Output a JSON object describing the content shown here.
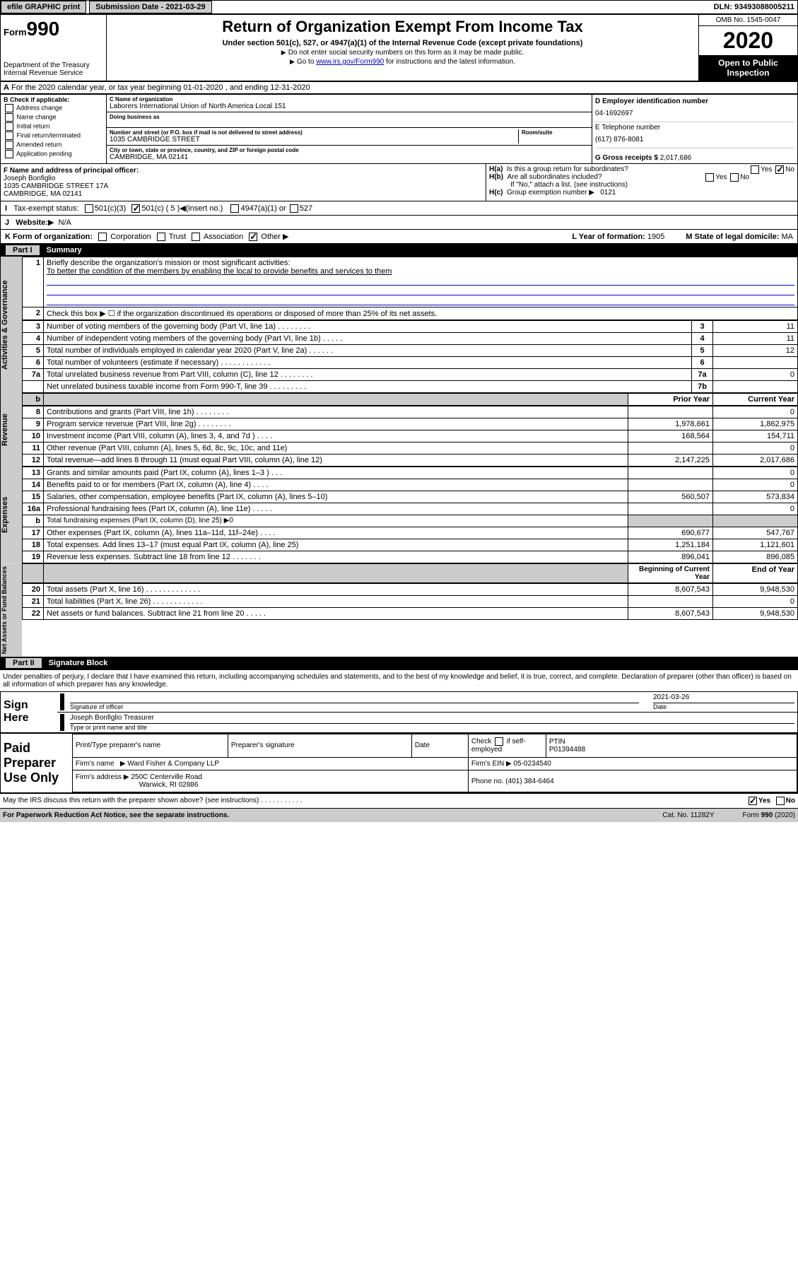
{
  "top": {
    "efile": "efile GRAPHIC print",
    "subdate_label": "Submission Date - 2021-03-29",
    "dln": "DLN: 93493088005211"
  },
  "header": {
    "form_small": "Form",
    "form_num": "990",
    "dept1": "Department of the Treasury",
    "dept2": "Internal Revenue Service",
    "title": "Return of Organization Exempt From Income Tax",
    "subtitle": "Under section 501(c), 527, or 4947(a)(1) of the Internal Revenue Code (except private foundations)",
    "note1": "Do not enter social security numbers on this form as it may be made public.",
    "note2_a": "Go to ",
    "note2_link": "www.irs.gov/Form990",
    "note2_b": " for instructions and the latest information.",
    "omb": "OMB No. 1545-0047",
    "year": "2020",
    "inspection": "Open to Public Inspection"
  },
  "lineA": "For the 2020 calendar year, or tax year beginning 01-01-2020    , and ending 12-31-2020",
  "B": {
    "label": "B Check if applicable:",
    "opts": [
      "Address change",
      "Name change",
      "Initial return",
      "Final return/terminated",
      "Amended return",
      "Application pending"
    ]
  },
  "C": {
    "name_lbl": "C Name of organization",
    "name": "Laborers International Union of North America Local 151",
    "dba_lbl": "Doing business as",
    "dba": "",
    "addr_lbl": "Number and street (or P.O. box if mail is not delivered to street address)",
    "room_lbl": "Room/suite",
    "addr": "1035 CAMBRIDGE STREET",
    "city_lbl": "City or town, state or province, country, and ZIP or foreign postal code",
    "city": "CAMBRIDGE, MA  02141"
  },
  "D": {
    "lbl": "D Employer identification number",
    "val": "04-1692697"
  },
  "E": {
    "lbl": "E Telephone number",
    "val": "(617) 876-8081"
  },
  "G": {
    "lbl": "G Gross receipts $",
    "val": "2,017,686"
  },
  "F": {
    "lbl": "F  Name and address of principal officer:",
    "name": "Joseph Bonfiglio",
    "addr1": "1035 CAMBRIDGE STREET 17A",
    "addr2": "CAMBRIDGE, MA  02141"
  },
  "H": {
    "a": "Is this a group return for subordinates?",
    "b": "Are all subordinates included?",
    "b_note": "If \"No,\" attach a list. (see instructions)",
    "c_lbl": "Group exemption number",
    "c_val": "0121"
  },
  "I": {
    "lbl": "Tax-exempt status:",
    "501c5": "501(c) ( 5 )",
    "insert": "(insert no.)",
    "opts": [
      "501(c)(3)",
      "4947(a)(1) or",
      "527"
    ]
  },
  "J": {
    "lbl": "Website:",
    "val": "N/A"
  },
  "K": {
    "lbl": "K Form of organization:",
    "opts": [
      "Corporation",
      "Trust",
      "Association",
      "Other"
    ],
    "L_lbl": "L Year of formation:",
    "L_val": "1905",
    "M_lbl": "M State of legal domicile:",
    "M_val": "MA"
  },
  "partI": {
    "label": "Part I",
    "title": "Summary"
  },
  "summary": {
    "q1": "Briefly describe the organization's mission or most significant activities:",
    "mission": "To better the condition of the members by enabling the local to provide benefits and services to them",
    "q2": "Check this box ▶ ☐  if the organization discontinued its operations or disposed of more than 25% of its net assets.",
    "rows_gov": [
      {
        "n": "3",
        "d": "Number of voting members of the governing body (Part VI, line 1a)  .   .   .   .   .   .   .   .",
        "b": "3",
        "v": "11"
      },
      {
        "n": "4",
        "d": "Number of independent voting members of the governing body (Part VI, line 1b)  .   .   .   .   .",
        "b": "4",
        "v": "11"
      },
      {
        "n": "5",
        "d": "Total number of individuals employed in calendar year 2020 (Part V, line 2a)  .   .   .   .   .   .",
        "b": "5",
        "v": "12"
      },
      {
        "n": "6",
        "d": "Total number of volunteers (estimate if necessary)  .   .   .   .   .   .   .   .   .   .   .   .",
        "b": "6",
        "v": ""
      },
      {
        "n": "7a",
        "d": "Total unrelated business revenue from Part VIII, column (C), line 12  .   .   .   .   .   .   .   .",
        "b": "7a",
        "v": "0"
      },
      {
        "n": "",
        "d": "Net unrelated business taxable income from Form 990-T, line 39  .   .   .   .   .   .   .   .   .",
        "b": "7b",
        "v": ""
      }
    ],
    "prior_hdr": "Prior Year",
    "curr_hdr": "Current Year",
    "rows_rev": [
      {
        "n": "8",
        "d": "Contributions and grants (Part VIII, line 1h)  .   .   .   .   .   .   .   .",
        "p": "",
        "c": "0"
      },
      {
        "n": "9",
        "d": "Program service revenue (Part VIII, line 2g)  .   .   .   .   .   .   .   .",
        "p": "1,978,661",
        "c": "1,862,975"
      },
      {
        "n": "10",
        "d": "Investment income (Part VIII, column (A), lines 3, 4, and 7d )  .   .   .   .",
        "p": "168,564",
        "c": "154,711"
      },
      {
        "n": "11",
        "d": "Other revenue (Part VIII, column (A), lines 5, 6d, 8c, 9c, 10c, and 11e)",
        "p": "",
        "c": "0"
      },
      {
        "n": "12",
        "d": "Total revenue—add lines 8 through 11 (must equal Part VIII, column (A), line 12)",
        "p": "2,147,225",
        "c": "2,017,686"
      }
    ],
    "rows_exp": [
      {
        "n": "13",
        "d": "Grants and similar amounts paid (Part IX, column (A), lines 1–3 )  .   .   .",
        "p": "",
        "c": "0"
      },
      {
        "n": "14",
        "d": "Benefits paid to or for members (Part IX, column (A), line 4)  .   .   .   .",
        "p": "",
        "c": "0"
      },
      {
        "n": "15",
        "d": "Salaries, other compensation, employee benefits (Part IX, column (A), lines 5–10)",
        "p": "560,507",
        "c": "573,834"
      },
      {
        "n": "16a",
        "d": "Professional fundraising fees (Part IX, column (A), line 11e)  .   .   .   .   .",
        "p": "",
        "c": "0"
      },
      {
        "n": "b",
        "d": "Total fundraising expenses (Part IX, column (D), line 25) ▶0",
        "p": "—",
        "c": "—"
      },
      {
        "n": "17",
        "d": "Other expenses (Part IX, column (A), lines 11a–11d, 11f–24e)  .   .   .   .",
        "p": "690,677",
        "c": "547,767"
      },
      {
        "n": "18",
        "d": "Total expenses. Add lines 13–17 (must equal Part IX, column (A), line 25)",
        "p": "1,251,184",
        "c": "1,121,601"
      },
      {
        "n": "19",
        "d": "Revenue less expenses. Subtract line 18 from line 12  .   .   .   .   .   .   .",
        "p": "896,041",
        "c": "896,085"
      }
    ],
    "boy_hdr": "Beginning of Current Year",
    "eoy_hdr": "End of Year",
    "rows_net": [
      {
        "n": "20",
        "d": "Total assets (Part X, line 16)  .   .   .   .   .   .   .   .   .   .   .   .   .",
        "p": "8,607,543",
        "c": "9,948,530"
      },
      {
        "n": "21",
        "d": "Total liabilities (Part X, line 26)  .   .   .   .   .   .   .   .   .   .   .   .",
        "p": "",
        "c": "0"
      },
      {
        "n": "22",
        "d": "Net assets or fund balances. Subtract line 21 from line 20  .   .   .   .   .",
        "p": "8,607,543",
        "c": "9,948,530"
      }
    ]
  },
  "sidelabels": {
    "gov": "Activities & Governance",
    "rev": "Revenue",
    "exp": "Expenses",
    "net": "Net Assets or Fund Balances"
  },
  "partII": {
    "label": "Part II",
    "title": "Signature Block"
  },
  "penalty": "Under penalties of perjury, I declare that I have examined this return, including accompanying schedules and statements, and to the best of my knowledge and belief, it is true, correct, and complete. Declaration of preparer (other than officer) is based on all information of which preparer has any knowledge.",
  "sign": {
    "here": "Sign Here",
    "sig_lbl": "Signature of officer",
    "date_lbl": "Date",
    "date": "2021-03-26",
    "name": "Joseph Bonfiglio  Treasurer",
    "name_lbl": "Type or print name and title"
  },
  "paid": {
    "lbl": "Paid Preparer Use Only",
    "h1": "Print/Type preparer's name",
    "h2": "Preparer's signature",
    "h3": "Date",
    "h4a": "Check",
    "h4b": "if self-employed",
    "ptin_lbl": "PTIN",
    "ptin": "P01394488",
    "firm_name_lbl": "Firm's name",
    "firm_name": "Ward Fisher & Company LLP",
    "ein_lbl": "Firm's EIN",
    "ein": "05-0234540",
    "firm_addr_lbl": "Firm's address",
    "firm_addr1": "250C Centerville Road",
    "firm_addr2": "Warwick, RI  02886",
    "phone_lbl": "Phone no.",
    "phone": "(401) 384-6464"
  },
  "footer": {
    "discuss": "May the IRS discuss this return with the preparer shown above? (see instructions)   .   .   .   .   .   .   .   .   .   .   .",
    "yes": "Yes",
    "no": "No",
    "paperwork": "For Paperwork Reduction Act Notice, see the separate instructions.",
    "cat": "Cat. No. 11282Y",
    "form": "Form 990 (2020)"
  }
}
